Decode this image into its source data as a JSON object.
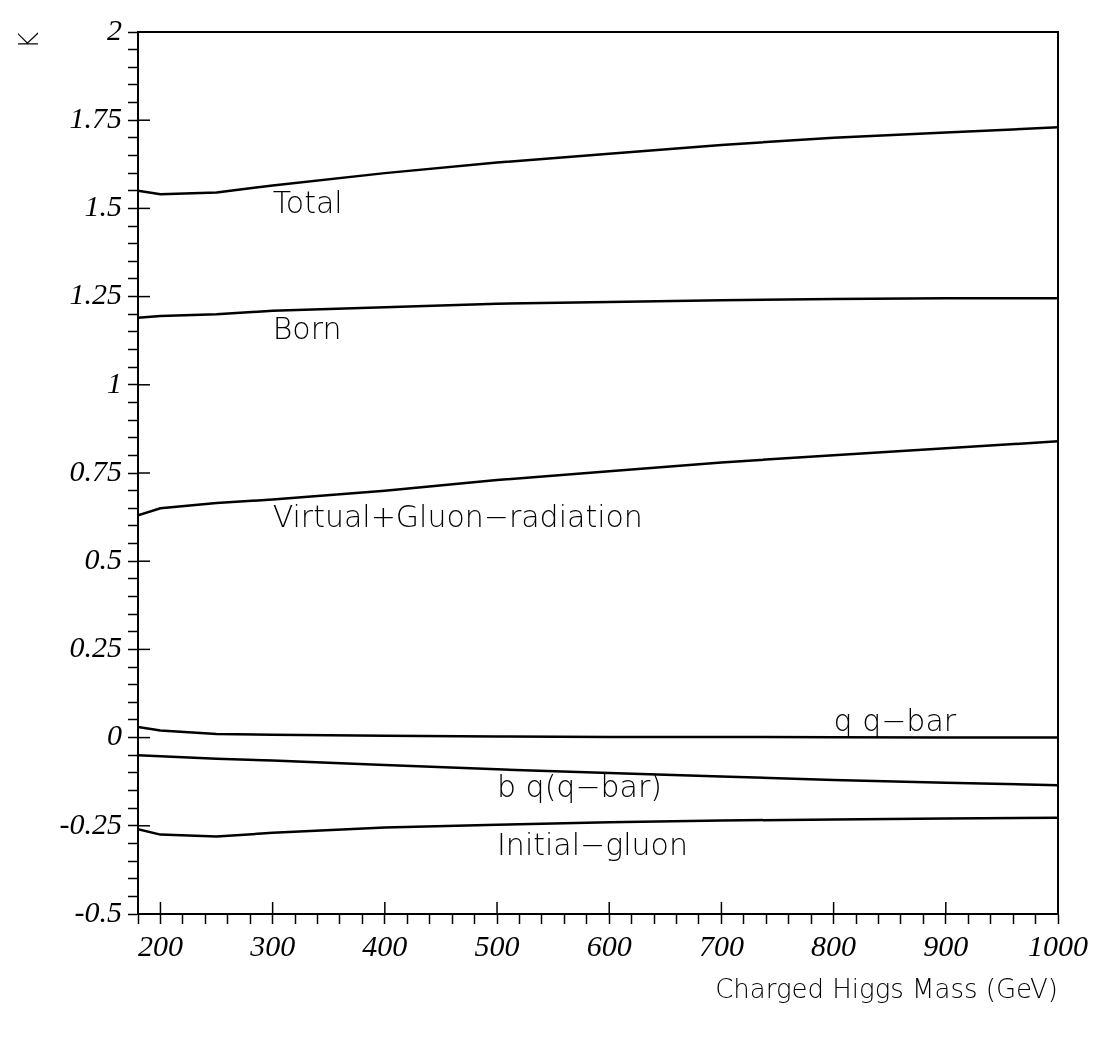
{
  "chart_data": {
    "type": "line",
    "xlabel": "Charged Higgs Mass (GeV)",
    "ylabel": "K",
    "xlim": [
      180,
      1000
    ],
    "ylim": [
      -0.5,
      2
    ],
    "xticks": [
      {
        "value": 180,
        "label": null
      },
      200,
      {
        "value": 220,
        "label": null
      },
      {
        "value": 240,
        "label": null
      },
      {
        "value": 260,
        "label": null
      },
      {
        "value": 280,
        "label": null
      },
      300,
      {
        "value": 320,
        "label": null
      },
      {
        "value": 340,
        "label": null
      },
      {
        "value": 360,
        "label": null
      },
      {
        "value": 380,
        "label": null
      },
      400,
      {
        "value": 420,
        "label": null
      },
      {
        "value": 440,
        "label": null
      },
      {
        "value": 460,
        "label": null
      },
      {
        "value": 480,
        "label": null
      },
      500,
      {
        "value": 520,
        "label": null
      },
      {
        "value": 540,
        "label": null
      },
      {
        "value": 560,
        "label": null
      },
      {
        "value": 580,
        "label": null
      },
      600,
      {
        "value": 620,
        "label": null
      },
      {
        "value": 640,
        "label": null
      },
      {
        "value": 660,
        "label": null
      },
      {
        "value": 680,
        "label": null
      },
      700,
      {
        "value": 720,
        "label": null
      },
      {
        "value": 740,
        "label": null
      },
      {
        "value": 760,
        "label": null
      },
      {
        "value": 780,
        "label": null
      },
      800,
      {
        "value": 820,
        "label": null
      },
      {
        "value": 840,
        "label": null
      },
      {
        "value": 860,
        "label": null
      },
      {
        "value": 880,
        "label": null
      },
      900,
      {
        "value": 920,
        "label": null
      },
      {
        "value": 940,
        "label": null
      },
      {
        "value": 960,
        "label": null
      },
      {
        "value": 980,
        "label": null
      },
      1000
    ],
    "yticks": [
      -0.5,
      {
        "value": -0.45,
        "label": null
      },
      {
        "value": -0.4,
        "label": null
      },
      {
        "value": -0.35,
        "label": null
      },
      {
        "value": -0.3,
        "label": null
      },
      -0.25,
      {
        "value": -0.2,
        "label": null
      },
      {
        "value": -0.15,
        "label": null
      },
      {
        "value": -0.1,
        "label": null
      },
      {
        "value": -0.05,
        "label": null
      },
      0,
      {
        "value": 0.05,
        "label": null
      },
      {
        "value": 0.1,
        "label": null
      },
      {
        "value": 0.15,
        "label": null
      },
      {
        "value": 0.2,
        "label": null
      },
      0.25,
      {
        "value": 0.3,
        "label": null
      },
      {
        "value": 0.35,
        "label": null
      },
      {
        "value": 0.4,
        "label": null
      },
      {
        "value": 0.45,
        "label": null
      },
      0.5,
      {
        "value": 0.55,
        "label": null
      },
      {
        "value": 0.6,
        "label": null
      },
      {
        "value": 0.65,
        "label": null
      },
      {
        "value": 0.7,
        "label": null
      },
      0.75,
      {
        "value": 0.8,
        "label": null
      },
      {
        "value": 0.85,
        "label": null
      },
      {
        "value": 0.9,
        "label": null
      },
      {
        "value": 0.95,
        "label": null
      },
      1,
      {
        "value": 1.05,
        "label": null
      },
      {
        "value": 1.1,
        "label": null
      },
      {
        "value": 1.15,
        "label": null
      },
      {
        "value": 1.2,
        "label": null
      },
      1.25,
      {
        "value": 1.3,
        "label": null
      },
      {
        "value": 1.35,
        "label": null
      },
      {
        "value": 1.4,
        "label": null
      },
      {
        "value": 1.45,
        "label": null
      },
      1.5,
      {
        "value": 1.55,
        "label": null
      },
      {
        "value": 1.6,
        "label": null
      },
      {
        "value": 1.65,
        "label": null
      },
      {
        "value": 1.7,
        "label": null
      },
      1.75,
      {
        "value": 1.8,
        "label": null
      },
      {
        "value": 1.85,
        "label": null
      },
      {
        "value": 1.9,
        "label": null
      },
      {
        "value": 1.95,
        "label": null
      },
      2
    ],
    "grid": false,
    "legend": false,
    "marker": "none",
    "line_style": "solid",
    "x": [
      180,
      200,
      250,
      300,
      400,
      500,
      600,
      700,
      800,
      900,
      1000
    ],
    "series": [
      {
        "name": "Total",
        "color": "#000000",
        "values": [
          1.55,
          1.54,
          1.545,
          1.565,
          1.6,
          1.63,
          1.655,
          1.68,
          1.7,
          1.715,
          1.73
        ]
      },
      {
        "name": "Born",
        "color": "#000000",
        "values": [
          1.19,
          1.195,
          1.2,
          1.21,
          1.22,
          1.23,
          1.235,
          1.24,
          1.243,
          1.245,
          1.245
        ]
      },
      {
        "name": "Virtual+Gluon−radiation",
        "color": "#000000",
        "values": [
          0.63,
          0.65,
          0.665,
          0.675,
          0.7,
          0.73,
          0.755,
          0.78,
          0.8,
          0.82,
          0.84
        ]
      },
      {
        "name": "q q−bar",
        "color": "#000000",
        "values": [
          0.03,
          0.02,
          0.01,
          0.008,
          0.005,
          0.003,
          0.002,
          0.002,
          0.001,
          0.0,
          0.0
        ]
      },
      {
        "name": "b q(q−bar)",
        "color": "#000000",
        "values": [
          -0.05,
          -0.053,
          -0.06,
          -0.065,
          -0.078,
          -0.09,
          -0.1,
          -0.11,
          -0.12,
          -0.128,
          -0.135
        ]
      },
      {
        "name": "Initial−gluon",
        "color": "#000000",
        "values": [
          -0.26,
          -0.275,
          -0.28,
          -0.27,
          -0.255,
          -0.247,
          -0.24,
          -0.235,
          -0.232,
          -0.229,
          -0.227
        ]
      }
    ]
  }
}
